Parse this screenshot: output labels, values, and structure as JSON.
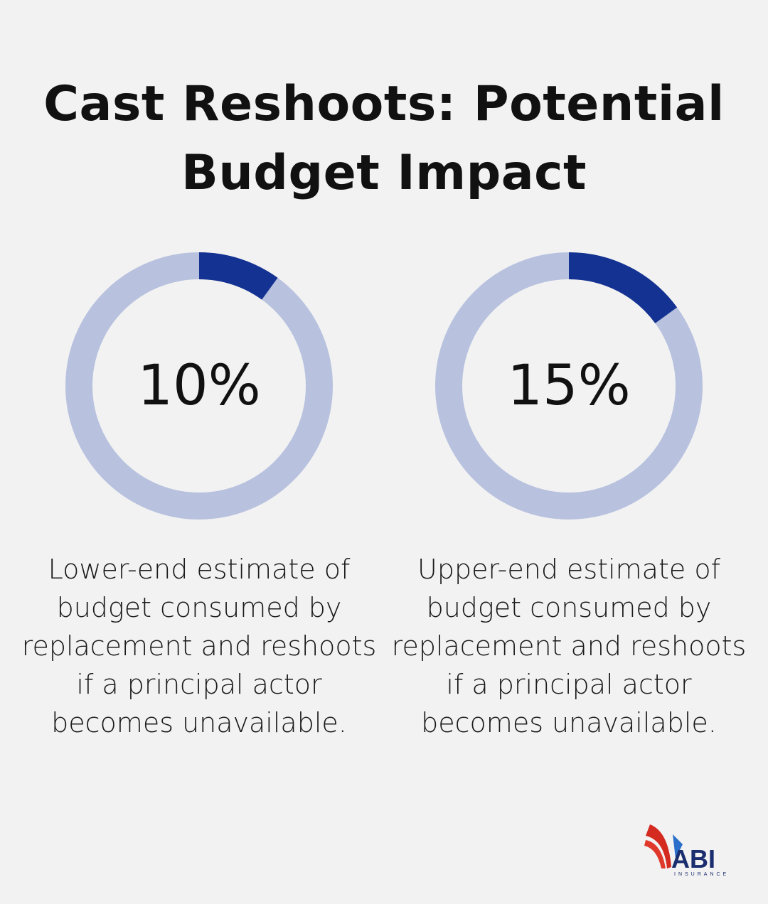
{
  "title": "Cast Reshoots: Potential Budget Impact",
  "colors": {
    "filled": "#143291",
    "track": "#b8c2df",
    "background": "#f2f2f2"
  },
  "chart_data": [
    {
      "type": "pie",
      "variant": "donut",
      "value_percent": 10,
      "label": "10%",
      "description": "Lower-end estimate of budget consumed by replacement and reshoots if a principal actor becomes unavailable."
    },
    {
      "type": "pie",
      "variant": "donut",
      "value_percent": 15,
      "label": "15%",
      "description": "Upper-end estimate of budget consumed by replacement and reshoots if a principal actor becomes unavailable."
    }
  ],
  "logo": {
    "text": "ABI",
    "subtext": "INSURANCE"
  }
}
